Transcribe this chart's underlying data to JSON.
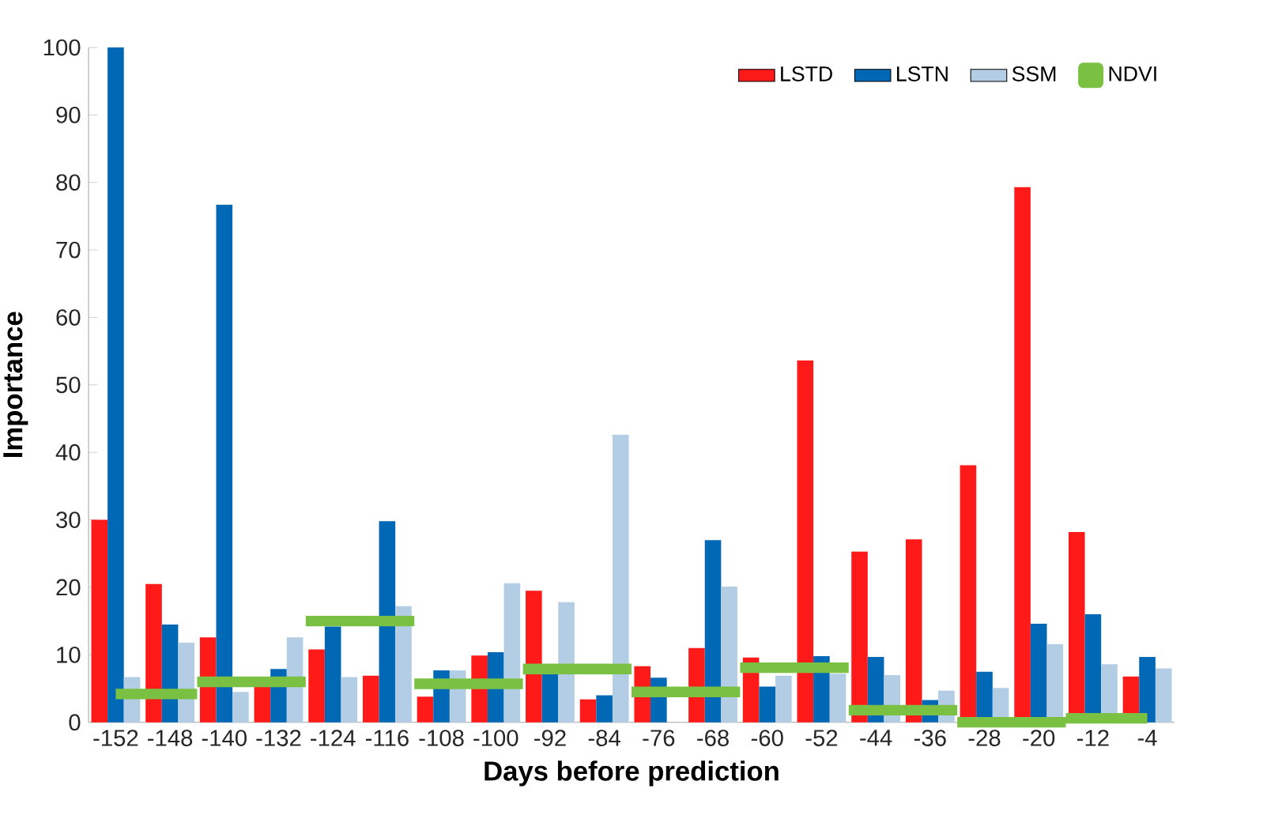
{
  "chart_data": {
    "type": "bar",
    "xlabel": "Days before prediction",
    "ylabel": "Importance",
    "categories": [
      "-152",
      "-148",
      "-140",
      "-132",
      "-124",
      "-116",
      "-108",
      "-100",
      "-92",
      "-84",
      "-76",
      "-68",
      "-60",
      "-52",
      "-44",
      "-36",
      "-28",
      "-20",
      "-12",
      "-4"
    ],
    "series": [
      {
        "name": "LSTD",
        "color": "#ff1a1a",
        "values": [
          30,
          20.5,
          12.6,
          5.8,
          10.8,
          6.9,
          3.8,
          9.9,
          19.5,
          3.4,
          8.3,
          11.0,
          9.6,
          53.6,
          25.3,
          27.1,
          38.1,
          79.3,
          28.2,
          6.8
        ]
      },
      {
        "name": "LSTN",
        "color": "#0068b4",
        "values": [
          100,
          14.5,
          76.7,
          7.9,
          14.2,
          29.8,
          7.7,
          10.4,
          7.2,
          4.0,
          6.6,
          27.0,
          5.3,
          9.8,
          9.7,
          3.3,
          7.5,
          14.6,
          16.0,
          9.7
        ]
      },
      {
        "name": "SSM",
        "color": "#b3cde4",
        "values": [
          6.7,
          11.8,
          4.5,
          12.6,
          6.7,
          17.2,
          7.7,
          20.6,
          17.8,
          42.6,
          null,
          20.1,
          6.9,
          7.2,
          7.0,
          4.7,
          5.1,
          11.6,
          8.6,
          8.0
        ]
      },
      {
        "name": "NDVI",
        "color": "#7ac143",
        "type": "step",
        "values": [
          4.2,
          4.2,
          6.0,
          6.0,
          15.0,
          15.0,
          5.7,
          5.7,
          7.9,
          7.9,
          4.5,
          4.5,
          8.1,
          8.1,
          1.8,
          1.8,
          0,
          0,
          0.6,
          0.6
        ]
      }
    ],
    "ylim": [
      0,
      100
    ],
    "yticks": [
      0,
      10,
      20,
      30,
      40,
      50,
      60,
      70,
      80,
      90,
      100
    ],
    "legend": "top right"
  }
}
